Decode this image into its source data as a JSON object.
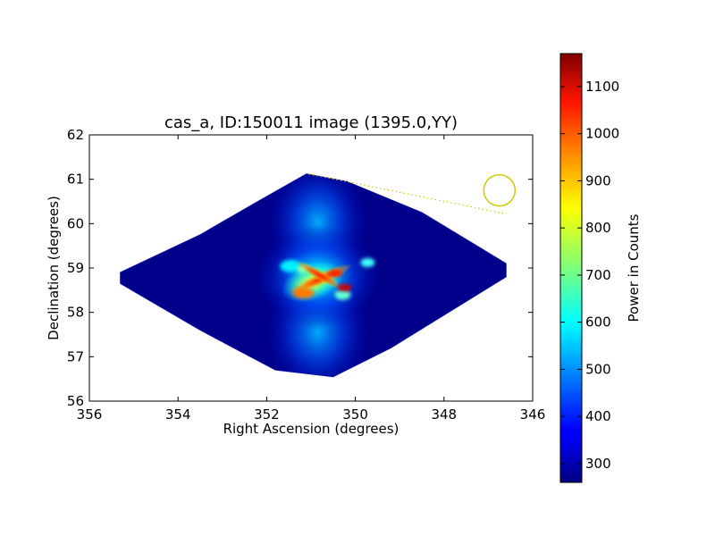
{
  "chart_data": {
    "type": "heatmap",
    "title": "cas_a, ID:150011 image (1395.0,YY)",
    "xlabel": "Right Ascension (degrees)",
    "ylabel": "Declination (degrees)",
    "xlim": [
      356,
      346
    ],
    "ylim": [
      56,
      62
    ],
    "xticks": [
      356,
      354,
      352,
      350,
      348,
      346
    ],
    "yticks": [
      56,
      57,
      58,
      59,
      60,
      61,
      62
    ],
    "colorbar": {
      "label": "Power in Counts",
      "range": [
        260,
        1170
      ],
      "ticks": [
        300,
        400,
        500,
        600,
        700,
        800,
        900,
        1000,
        1100
      ],
      "colormap": "jet"
    },
    "footprint": [
      [
        351.1,
        61.12
      ],
      [
        350.2,
        60.95
      ],
      [
        348.5,
        60.25
      ],
      [
        346.6,
        59.1
      ],
      [
        346.6,
        58.8
      ],
      [
        349.2,
        57.2
      ],
      [
        350.5,
        56.55
      ],
      [
        351.8,
        56.7
      ],
      [
        353.5,
        57.6
      ],
      [
        355.3,
        58.65
      ],
      [
        355.3,
        58.9
      ],
      [
        353.5,
        59.75
      ],
      [
        352.2,
        60.5
      ]
    ],
    "emission": {
      "center": [
        350.85,
        58.8
      ],
      "peak_value": 1150,
      "background_value": 270
    },
    "marker_circle": {
      "ra": 346.75,
      "dec": 60.75,
      "color": "#cccc00"
    },
    "dotted_line": {
      "from": [
        351.05,
        61.12
      ],
      "to": [
        346.6,
        60.22
      ],
      "color": "#cccc00"
    }
  }
}
